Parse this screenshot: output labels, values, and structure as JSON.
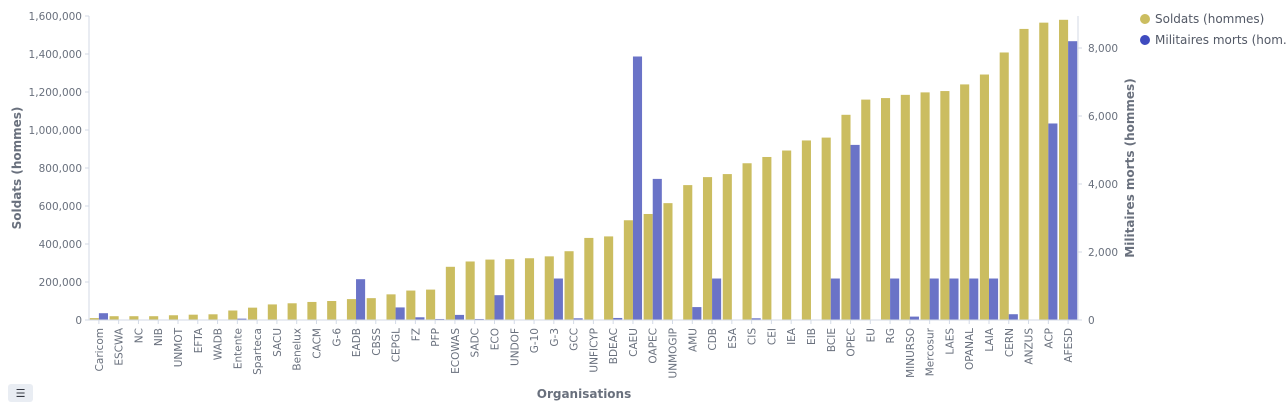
{
  "legend": {
    "items": [
      {
        "label": "Soldats (hommes)",
        "color": "#cbbd60"
      },
      {
        "label": "Militaires morts (hom...",
        "color": "#3f4bbf"
      }
    ],
    "toggle_icon": "list-icon"
  },
  "chart_data": {
    "type": "bar",
    "xlabel": "Organisations",
    "ylabel_left": "Soldats (hommes)",
    "ylabel_right": "Militaires morts (hommes)",
    "ylim_left": [
      0,
      1600000
    ],
    "ylim_right": [
      0,
      8941
    ],
    "yticks_left": [
      "0",
      "200,000",
      "400,000",
      "600,000",
      "800,000",
      "1,000,000",
      "1,200,000",
      "1,400,000",
      "1,600,000"
    ],
    "yticks_right": [
      "0",
      "2,000",
      "4,000",
      "6,000",
      "8,000"
    ],
    "categories": [
      "Caricom",
      "ESCWA",
      "NC",
      "NIB",
      "UNMOT",
      "EFTA",
      "WADB",
      "Entente",
      "Sparteca",
      "SACU",
      "Benelux",
      "CACM",
      "G-6",
      "EADB",
      "CBSS",
      "CEPGL",
      "FZ",
      "PFP",
      "ECOWAS",
      "SADC",
      "ECO",
      "UNDOF",
      "G-10",
      "G-3",
      "GCC",
      "UNFICYP",
      "BDEAC",
      "CAEU",
      "OAPEC",
      "UNMOGIP",
      "AMU",
      "CDB",
      "ESA",
      "CIS",
      "CEI",
      "IEA",
      "EIB",
      "BCIE",
      "OPEC",
      "EU",
      "RG",
      "MINURSO",
      "Mercosur",
      "LAES",
      "OPANAL",
      "LAIA",
      "CERN",
      "ANZUS",
      "ACP",
      "AFESD"
    ],
    "series": [
      {
        "name": "Soldats (hommes)",
        "color": "#cbbd60",
        "axis": "left",
        "values": [
          10000,
          20000,
          20000,
          20000,
          25000,
          28000,
          30000,
          50000,
          65000,
          82000,
          88000,
          95000,
          100000,
          110000,
          115000,
          135000,
          155000,
          160000,
          280000,
          308000,
          318000,
          320000,
          325000,
          335000,
          362000,
          432000,
          440000,
          525000,
          558000,
          615000,
          710000,
          752000,
          768000,
          825000,
          858000,
          892000,
          945000,
          960000,
          1080000,
          1160000,
          1168000,
          1185000,
          1198000,
          1205000,
          1240000,
          1292000,
          1408000,
          1532000,
          1565000,
          1580000
        ]
      },
      {
        "name": "Militaires morts (hom...",
        "color": "#6a73c7",
        "axis": "right",
        "values": [
          200,
          0,
          0,
          0,
          0,
          0,
          0,
          40,
          0,
          0,
          0,
          0,
          0,
          1200,
          0,
          370,
          80,
          30,
          150,
          30,
          730,
          0,
          0,
          1220,
          50,
          0,
          60,
          7750,
          4150,
          0,
          380,
          1220,
          0,
          50,
          0,
          0,
          0,
          1220,
          5150,
          0,
          1220,
          100,
          1220,
          1220,
          1220,
          1220,
          170,
          0,
          5780,
          8200
        ]
      }
    ]
  }
}
